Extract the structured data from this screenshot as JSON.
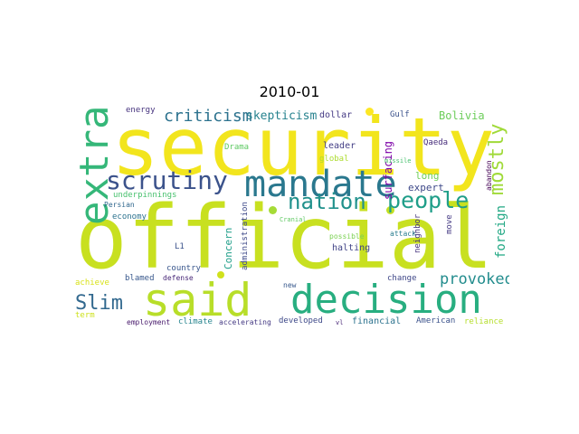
{
  "title": "2010-01",
  "words": [
    {
      "text": "security",
      "color": "#f2e51d"
    },
    {
      "text": "official",
      "color": "#c8e020"
    },
    {
      "text": "said",
      "color": "#b8de29"
    },
    {
      "text": "decision",
      "color": "#28ae80"
    },
    {
      "text": "mandate",
      "color": "#2a788e"
    },
    {
      "text": "extra",
      "color": "#35b779"
    },
    {
      "text": "scrutiny",
      "color": "#3b528b"
    },
    {
      "text": "nation",
      "color": "#21918c"
    },
    {
      "text": "people",
      "color": "#1f9e89"
    },
    {
      "text": "mostly",
      "color": "#a0da39"
    },
    {
      "text": "criticism",
      "color": "#2c728e"
    },
    {
      "text": "skepticism",
      "color": "#26828e"
    },
    {
      "text": "Slim",
      "color": "#31688e"
    },
    {
      "text": "provoked",
      "color": "#228c8d"
    },
    {
      "text": "foreign",
      "color": "#22a884"
    },
    {
      "text": "energy",
      "color": "#46337e"
    },
    {
      "text": "dollar",
      "color": "#443983"
    },
    {
      "text": "Gulf",
      "color": "#3b528b"
    },
    {
      "text": "Bolivia",
      "color": "#6ccd5a"
    },
    {
      "text": "leader",
      "color": "#433e85"
    },
    {
      "text": "Qaeda",
      "color": "#472d7b"
    },
    {
      "text": "Drama",
      "color": "#5ec962"
    },
    {
      "text": "global",
      "color": "#addc30"
    },
    {
      "text": "surfacing",
      "color": "#7e03a8"
    },
    {
      "text": "missile",
      "color": "#48c16e"
    },
    {
      "text": "abandon",
      "color": "#440154"
    },
    {
      "text": "long",
      "color": "#6ece58"
    },
    {
      "text": "expert",
      "color": "#3e4989"
    },
    {
      "text": "underpinnings",
      "color": "#48c16e"
    },
    {
      "text": "Persian",
      "color": "#31688e"
    },
    {
      "text": "economy",
      "color": "#2c728e"
    },
    {
      "text": "administration",
      "color": "#3e4989"
    },
    {
      "text": "Cranial",
      "color": "#5ec962"
    },
    {
      "text": "neighbor",
      "color": "#46337e"
    },
    {
      "text": "move",
      "color": "#443983"
    },
    {
      "text": "L1",
      "color": "#3b528b"
    },
    {
      "text": "Concern",
      "color": "#1f9e89"
    },
    {
      "text": "halting",
      "color": "#414487"
    },
    {
      "text": "possible",
      "color": "#7ad151"
    },
    {
      "text": "attack",
      "color": "#287c8e"
    },
    {
      "text": "achieve",
      "color": "#d8e219"
    },
    {
      "text": "blamed",
      "color": "#38588c"
    },
    {
      "text": "defense",
      "color": "#482878"
    },
    {
      "text": "country",
      "color": "#39568c"
    },
    {
      "text": "new",
      "color": "#38598c"
    },
    {
      "text": "change",
      "color": "#3f4788"
    },
    {
      "text": "term",
      "color": "#cde11d"
    },
    {
      "text": "employment",
      "color": "#481a6c"
    },
    {
      "text": "climate",
      "color": "#25848e"
    },
    {
      "text": "accelerating",
      "color": "#443983"
    },
    {
      "text": "developed",
      "color": "#3e4989"
    },
    {
      "text": "financial",
      "color": "#2c728e"
    },
    {
      "text": "American",
      "color": "#3b528b"
    },
    {
      "text": "reliance",
      "color": "#b5de2b"
    },
    {
      "text": "vl",
      "color": "#482677"
    }
  ]
}
